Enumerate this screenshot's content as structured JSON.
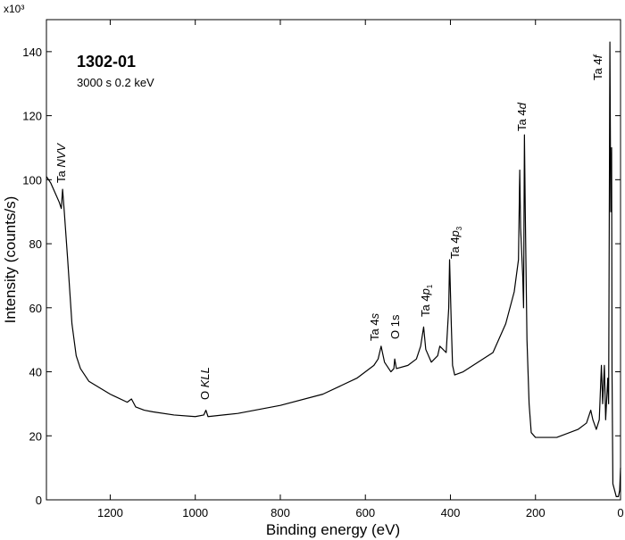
{
  "chart_data": {
    "type": "line",
    "title": "1302-01",
    "subtitle": "3000 s 0.2 keV",
    "x_label": "Binding energy (eV)",
    "y_label": "Intensity (counts/s)",
    "y_scale_label": "x10³",
    "color": "#000000",
    "xlim": [
      1350,
      0
    ],
    "ylim": [
      0,
      150
    ],
    "xticks": [
      1200,
      1000,
      800,
      600,
      400,
      200,
      0
    ],
    "yticks": [
      0,
      20,
      40,
      60,
      80,
      100,
      120,
      140
    ],
    "x": [
      1350,
      1340,
      1330,
      1320,
      1315,
      1312,
      1308,
      1300,
      1290,
      1280,
      1270,
      1250,
      1200,
      1160,
      1150,
      1140,
      1120,
      1100,
      1050,
      1000,
      980,
      975,
      970,
      900,
      800,
      700,
      620,
      580,
      570,
      563,
      555,
      540,
      533,
      531,
      527,
      500,
      480,
      470,
      463,
      458,
      445,
      430,
      425,
      410,
      404,
      402,
      398,
      395,
      390,
      370,
      300,
      270,
      250,
      240,
      237,
      235,
      230,
      228,
      226,
      224,
      220,
      215,
      210,
      200,
      150,
      100,
      80,
      70,
      65,
      57,
      50,
      45,
      42,
      38,
      35,
      30,
      28,
      25,
      23,
      21,
      20,
      18,
      10,
      5,
      2,
      0
    ],
    "values": [
      101,
      99,
      96,
      93,
      91,
      97,
      90,
      75,
      55,
      45,
      41,
      37,
      33,
      30.5,
      31.5,
      29,
      28,
      27.5,
      26.5,
      26,
      26.5,
      28,
      26,
      27,
      29.5,
      33,
      38,
      42,
      44,
      48,
      43,
      40,
      41,
      44,
      41,
      42,
      44,
      48,
      54,
      47,
      43,
      45,
      48,
      46,
      60,
      75,
      55,
      42,
      39,
      40,
      46,
      55,
      65,
      75,
      103,
      85,
      70,
      60,
      114,
      90,
      50,
      30,
      21,
      19.5,
      19.5,
      22,
      24,
      28,
      25,
      22,
      25,
      42,
      30,
      42,
      25,
      38,
      30,
      143,
      90,
      110,
      40,
      5,
      1,
      1,
      3,
      10
    ],
    "annotations": [
      {
        "text": "Ta ",
        "italic": "NVV"
      },
      {
        "text": "O ",
        "italic": "KLL"
      },
      {
        "text": "Ta 4",
        "italic": "s"
      },
      {
        "text": "O 1s"
      },
      {
        "text": "Ta 4",
        "italic": "p",
        "subscript": "1"
      },
      {
        "text": "Ta 4",
        "italic": "p",
        "subscript": "3"
      },
      {
        "text": "Ta 4",
        "italic": "d"
      },
      {
        "text": "Ta 4",
        "italic": "f"
      }
    ]
  }
}
